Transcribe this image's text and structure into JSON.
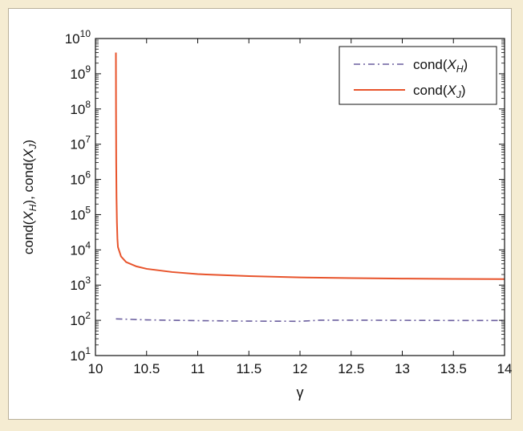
{
  "chart_data": {
    "type": "line",
    "xlabel": "γ",
    "ylabel": {
      "prefix": "cond(",
      "var1": "X",
      "sub1": "H",
      "mid": "), cond(",
      "var2": "X",
      "sub2": "J",
      "suffix": ")"
    },
    "xlim": [
      10,
      14
    ],
    "ylim": [
      10,
      10000000000
    ],
    "yscale": "log",
    "grid": false,
    "legend_position": "top-right",
    "x_ticks": [
      10,
      10.5,
      11,
      11.5,
      12,
      12.5,
      13,
      13.5,
      14
    ],
    "x_tick_labels": [
      "10",
      "10.5",
      "11",
      "11.5",
      "12",
      "12.5",
      "13",
      "13.5",
      "14"
    ],
    "y_tick_exponents": [
      1,
      2,
      3,
      4,
      5,
      6,
      7,
      8,
      9,
      10
    ],
    "y_tick_base": "10",
    "series": [
      {
        "name": {
          "prefix": "cond(",
          "var": "X",
          "sub": "H",
          "suffix": ")"
        },
        "color": "#6a5e9e",
        "style": "dashdot",
        "x": [
          10.2,
          10.5,
          11,
          11.5,
          12,
          12.2,
          12.5,
          13,
          13.5,
          14
        ],
        "y": [
          110,
          103,
          98,
          95,
          94,
          101,
          101,
          100,
          99,
          99
        ]
      },
      {
        "name": {
          "prefix": "cond(",
          "var": "X",
          "sub": "J",
          "suffix": ")"
        },
        "color": "#e8542c",
        "style": "solid",
        "x": [
          10.2,
          10.201,
          10.203,
          10.206,
          10.21,
          10.215,
          10.22,
          10.25,
          10.3,
          10.4,
          10.5,
          10.75,
          11,
          11.5,
          12,
          12.5,
          13,
          13.5,
          14
        ],
        "y": [
          4000000000,
          100000000,
          3000000,
          300000,
          60000,
          20000,
          12000,
          6500,
          4500,
          3400,
          2900,
          2350,
          2050,
          1800,
          1650,
          1580,
          1530,
          1500,
          1480
        ]
      }
    ]
  },
  "colors": {
    "page_background": "#f5ecd2",
    "plot_background": "#ffffff",
    "axis": "#111111"
  }
}
